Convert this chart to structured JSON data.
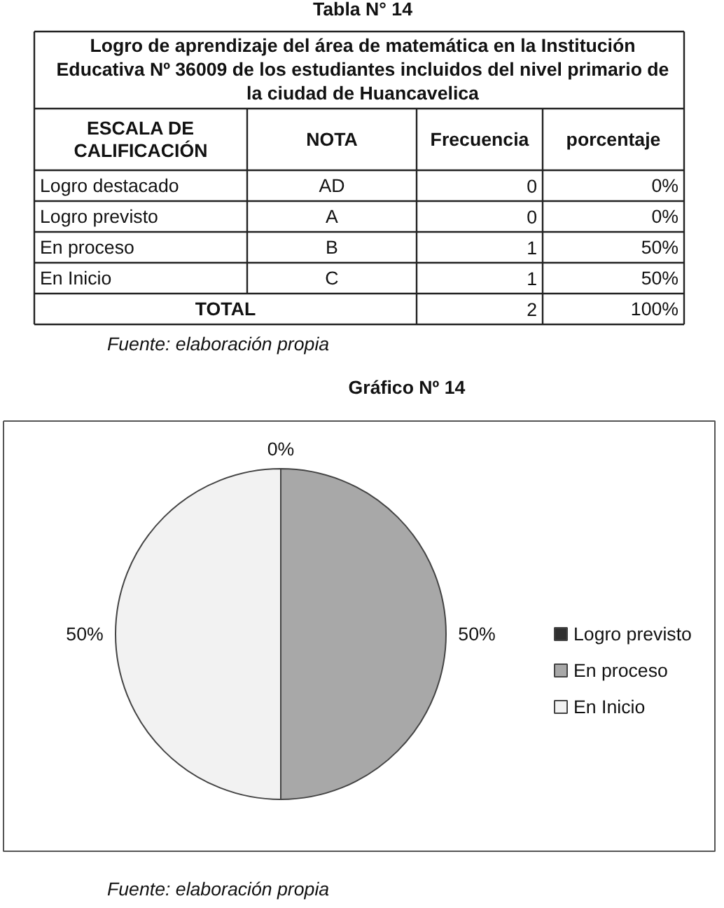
{
  "chart_data": [
    {
      "type": "other",
      "title": "Tabla N° 14",
      "subtitle": "Logro de aprendizaje del área de matemática en la Institución Educativa Nº 36009 de los estudiantes incluidos del nivel primario de la ciudad de Huancavelica",
      "annotations": [
        "ESCALA DE CALIFICACIÓN",
        "NOTA",
        "Frecuencia",
        "porcentaje",
        "Logro destacado",
        "AD",
        "0",
        "0%",
        "Logro previsto",
        "A",
        "0",
        "0%",
        "En proceso",
        "B",
        "1",
        "50%",
        "En Inicio",
        "C",
        "1",
        "50%",
        "TOTAL",
        "2",
        "100%",
        "Fuente: elaboración propia"
      ]
    },
    {
      "type": "pie",
      "title": "Gráfico Nº 14",
      "categories": [
        "Logro previsto",
        "En proceso",
        "En Inicio"
      ],
      "values": [
        0,
        50,
        50
      ],
      "colors": [
        "#303030",
        "#a8a8a8",
        "#f2f2f2"
      ],
      "value_labels": [
        "0%",
        "50%",
        "50%"
      ],
      "legend": "right",
      "annotations": [
        "Fuente: elaboración propia"
      ]
    }
  ]
}
